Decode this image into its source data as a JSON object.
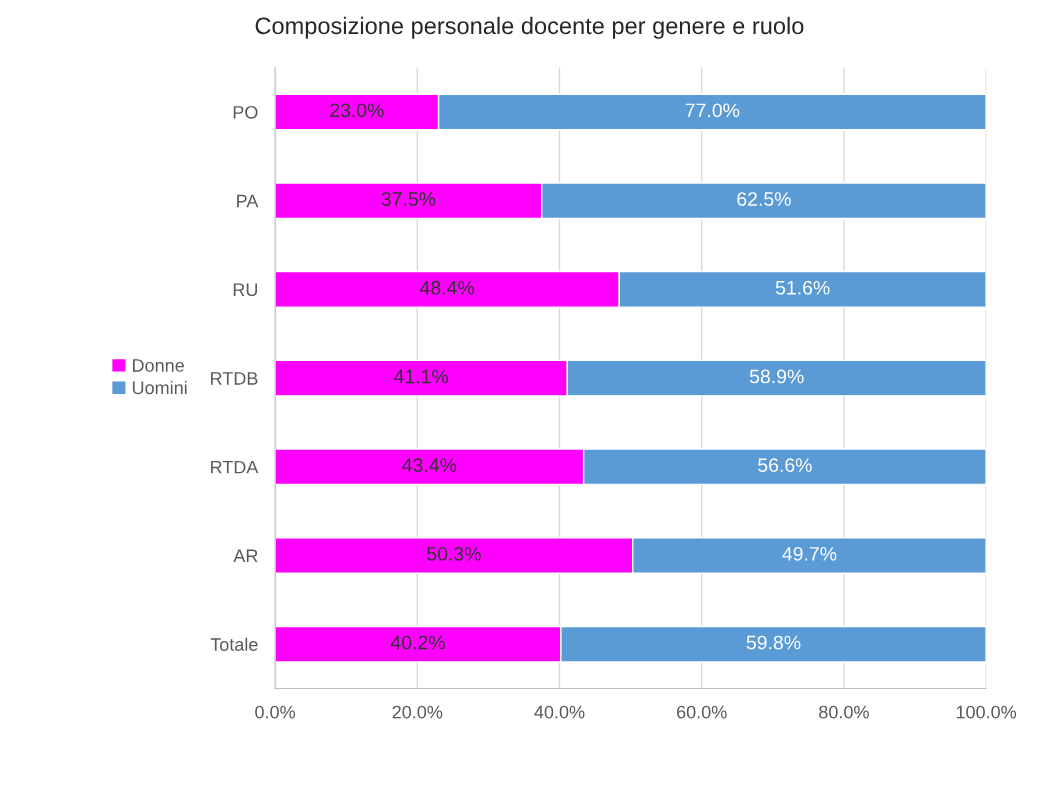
{
  "chart_data": {
    "type": "bar",
    "orientation": "horizontal",
    "stacked": true,
    "title": "Composizione personale docente per genere e ruolo",
    "categories": [
      "PO",
      "PA",
      "RU",
      "RTDB",
      "RTDA",
      "AR",
      "Totale"
    ],
    "series": [
      {
        "name": "Donne",
        "color": "#ff00ff",
        "values": [
          23.0,
          37.5,
          48.4,
          41.1,
          43.4,
          50.3,
          40.2
        ],
        "value_labels": [
          "23.0%",
          "37.5%",
          "48.4%",
          "41.1%",
          "43.4%",
          "50.3%",
          "40.2%"
        ]
      },
      {
        "name": "Uomini",
        "color": "#5b9bd5",
        "values": [
          77.0,
          62.5,
          51.6,
          58.9,
          56.6,
          49.7,
          59.8
        ],
        "value_labels": [
          "77.0%",
          "62.5%",
          "51.6%",
          "58.9%",
          "56.6%",
          "49.7%",
          "59.8%"
        ]
      }
    ],
    "xlim": [
      0,
      100
    ],
    "xticks": [
      {
        "value": 0,
        "label": "0.0%"
      },
      {
        "value": 20,
        "label": "20.0%"
      },
      {
        "value": 40,
        "label": "40.0%"
      },
      {
        "value": 60,
        "label": "60.0%"
      },
      {
        "value": 80,
        "label": "80.0%"
      },
      {
        "value": 100,
        "label": "100.0%"
      }
    ],
    "grid": "x",
    "legend": "left"
  }
}
